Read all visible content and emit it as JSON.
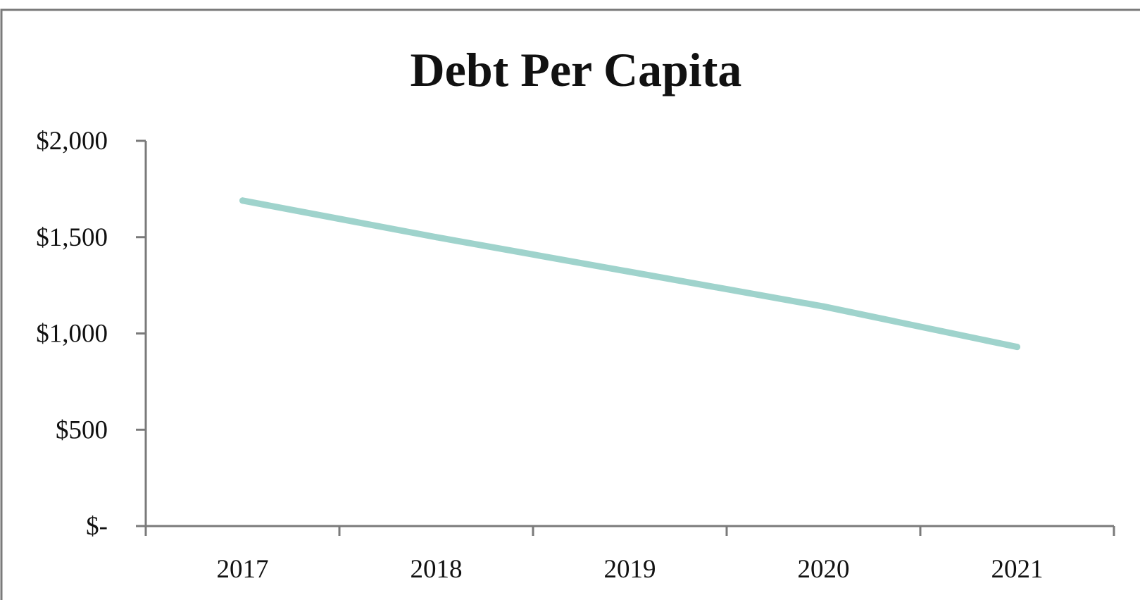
{
  "chart_data": {
    "type": "line",
    "title": "Debt Per Capita",
    "xlabel": "",
    "ylabel": "",
    "categories": [
      "2017",
      "2018",
      "2019",
      "2020",
      "2021"
    ],
    "series": [
      {
        "values": [
          1690,
          1500,
          1320,
          1140,
          930
        ],
        "color": "#9fd3cc"
      }
    ],
    "ylim": [
      0,
      2000
    ],
    "yticks": [
      0,
      500,
      1000,
      1500,
      2000
    ],
    "ytick_labels": [
      "$-",
      "$500",
      "$1,000",
      "$1,500",
      "$2,000"
    ],
    "grid": false,
    "legend": "none",
    "colors": {
      "frame": "#7a7a7a",
      "axis": "#7a7a7a",
      "text": "#111111"
    }
  }
}
